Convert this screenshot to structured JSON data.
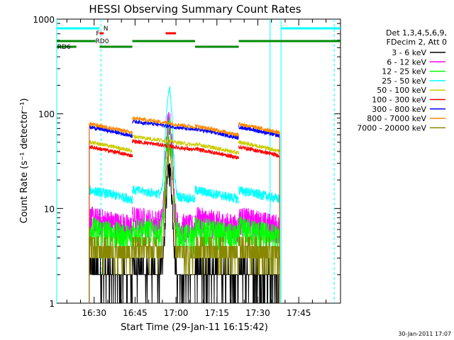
{
  "chart_data": {
    "type": "line",
    "title": "HESSI Observing Summary Count Rates",
    "xlabel": "Start Time (29-Jan-11 16:15:42)",
    "ylabel": "Count Rate (s⁻¹ detector⁻¹)",
    "y_scale": "log",
    "ylim": [
      1,
      1000
    ],
    "xlim_minutes": [
      16.3,
      120.3
    ],
    "y_ticks": [
      {
        "value": 1,
        "label": "1"
      },
      {
        "value": 10,
        "label": "10"
      },
      {
        "value": 100,
        "label": "100"
      },
      {
        "value": 1000,
        "label": "1000"
      }
    ],
    "x_ticks": [
      {
        "minute": 30,
        "label": "16:30"
      },
      {
        "minute": 45,
        "label": "16:45"
      },
      {
        "minute": 60,
        "label": "17:00"
      },
      {
        "minute": 75,
        "label": "17:15"
      },
      {
        "minute": 90,
        "label": "17:30"
      },
      {
        "minute": 105,
        "label": "17:45"
      }
    ],
    "legend_header": [
      "Det 1,3,4,5,6,9,",
      "FDecim 2, Att 0"
    ],
    "series": [
      {
        "name": "3 - 6 keV",
        "color": "#000000",
        "level": 2.0
      },
      {
        "name": "6 - 12 keV",
        "color": "#ff00ff",
        "level": 7.0
      },
      {
        "name": "12 - 25 keV",
        "color": "#00ff00",
        "level": 5.5
      },
      {
        "name": "25 - 50 keV",
        "color": "#00ffff",
        "level": 14.0
      },
      {
        "name": "50 - 100 keV",
        "color": "#cccc00",
        "level": 45.0
      },
      {
        "name": "100 - 300 keV",
        "color": "#ff0000",
        "level": 40.0
      },
      {
        "name": "300 - 800 keV",
        "color": "#0000ff",
        "level": 65.0
      },
      {
        "name": "800 - 7000 keV",
        "color": "#ff8800",
        "level": 70.0
      },
      {
        "name": "7000 - 20000 keV",
        "color": "#888800",
        "level": 3.5
      }
    ],
    "segments_minutes": [
      [
        28.2,
        44.0
      ],
      [
        44.0,
        67.0
      ],
      [
        67.0,
        83.0
      ],
      [
        83.0,
        98.0
      ]
    ],
    "flare_peak_minute": 57.5,
    "status_bars": [
      {
        "label": "N",
        "color": "#00ffff"
      },
      {
        "label": "F",
        "color": "#ff0000"
      },
      {
        "label": "RD0",
        "color": "#008800"
      },
      {
        "label": "RD6",
        "color": "#008800"
      }
    ],
    "vlines_minutes": [
      16.3,
      32.5,
      94.5,
      98.5,
      118.0
    ],
    "timestamp": "30-Jan-2011 17:07"
  }
}
